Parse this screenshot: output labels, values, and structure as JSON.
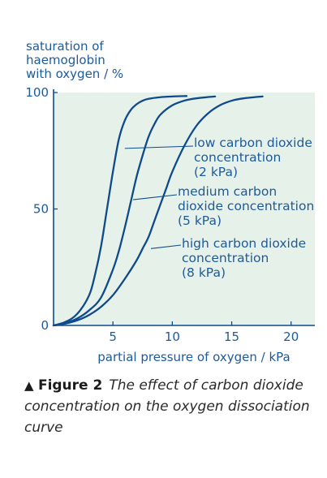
{
  "chart_data": {
    "type": "line",
    "ylabel_lines": [
      "saturation of",
      "haemoglobin",
      "with oxygen / %"
    ],
    "xlabel": "partial pressure of oxygen / kPa",
    "xlim": [
      0,
      22
    ],
    "ylim": [
      0,
      100
    ],
    "x_ticks": [
      5,
      10,
      15,
      20
    ],
    "y_ticks": [
      0,
      50,
      100
    ],
    "plot_background": "#e6f1e9",
    "line_color": "#0e4a8c",
    "series": [
      {
        "id": "low",
        "label_lines": [
          "low carbon dioxide",
          "concentration",
          "(2 kPa)"
        ],
        "label_anchor": [
          6,
          76
        ],
        "x": [
          0,
          1,
          2,
          3,
          3.5,
          4,
          4.5,
          5,
          5.5,
          6,
          6.5,
          7,
          7.5,
          8,
          9,
          10,
          11.2
        ],
        "y": [
          0,
          1.5,
          5,
          13,
          22,
          34,
          50,
          66,
          80,
          88,
          92.5,
          95,
          96.5,
          97.3,
          98,
          98.3,
          98.5
        ]
      },
      {
        "id": "medium",
        "label_lines": [
          "medium carbon",
          "dioxide concentration",
          "(5 kPa)"
        ],
        "label_anchor": [
          6.7,
          54
        ],
        "x": [
          0,
          1,
          2,
          3,
          4,
          5,
          5.5,
          6,
          6.5,
          7,
          7.5,
          8,
          8.5,
          9,
          10,
          11,
          12,
          13.6
        ],
        "y": [
          0,
          1,
          3,
          6.5,
          12,
          24,
          32,
          42,
          53,
          64,
          73,
          81,
          86.5,
          90.5,
          94.5,
          96.5,
          97.5,
          98.3
        ]
      },
      {
        "id": "high",
        "label_lines": [
          "high carbon dioxide",
          "concentration",
          "(8 kPa)"
        ],
        "label_anchor": [
          8.2,
          33
        ],
        "x": [
          0,
          1,
          2,
          3,
          4,
          5,
          6,
          7,
          7.5,
          8,
          8.5,
          9,
          9.5,
          10,
          11,
          12,
          13,
          14,
          15,
          16,
          17.6
        ],
        "y": [
          0,
          0.8,
          2.2,
          4.5,
          8,
          13,
          20,
          28,
          33,
          38,
          45,
          52,
          59,
          66,
          77,
          85.5,
          91,
          94.5,
          96.5,
          97.5,
          98.3
        ]
      }
    ]
  },
  "caption": {
    "label": "Figure 2",
    "text": "The effect of carbon dioxide concentration on the oxygen dissociation curve"
  }
}
